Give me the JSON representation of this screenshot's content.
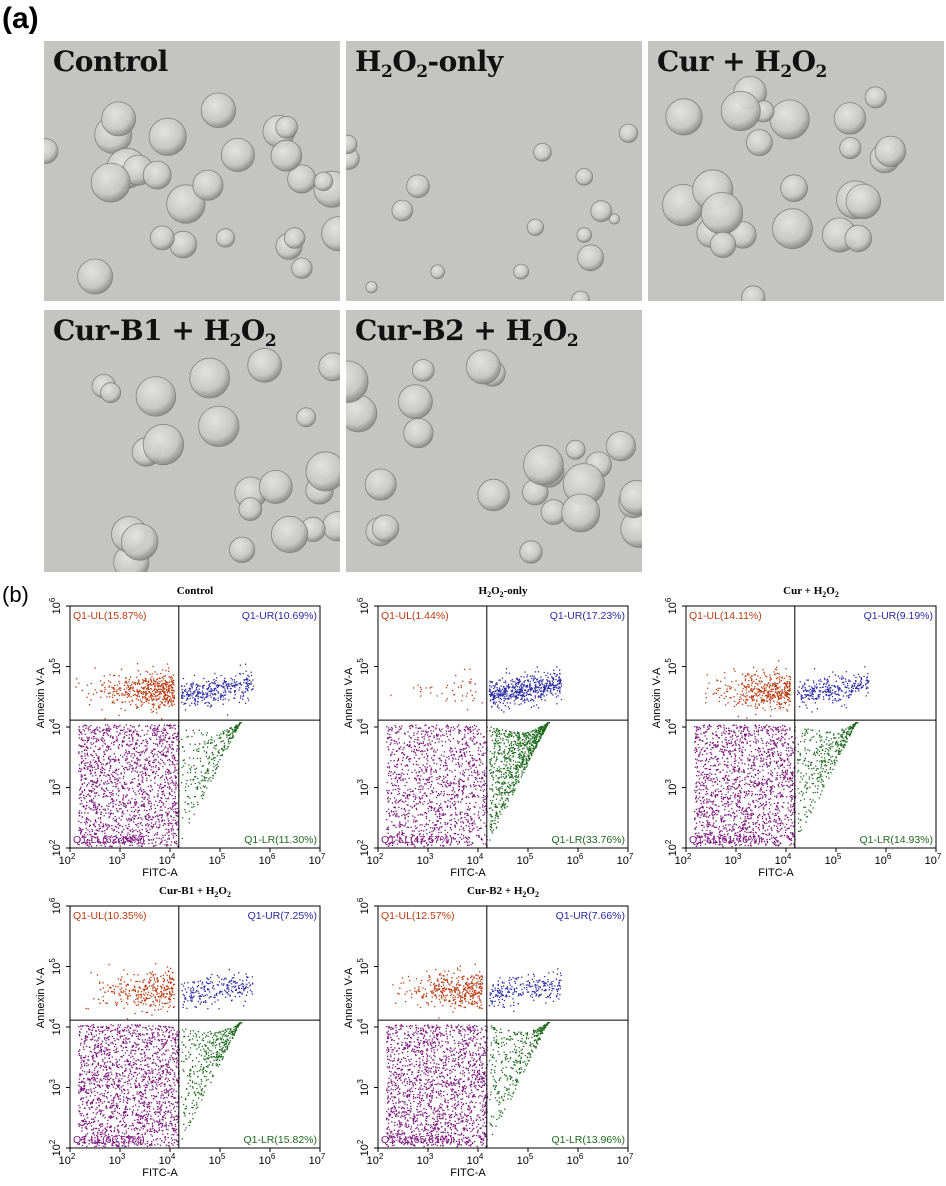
{
  "panel_a": {
    "letter": "(a)",
    "images": [
      {
        "label_parts": [
          "Control"
        ]
      },
      {
        "label_parts": [
          "H",
          "2",
          "O",
          "2",
          "-only"
        ]
      },
      {
        "label_parts": [
          "Cur + H",
          "2",
          "O",
          "2"
        ]
      },
      {
        "label_parts": [
          "Cur-B1 + H",
          "2",
          "O",
          "2"
        ]
      },
      {
        "label_parts": [
          "Cur-B2 + H",
          "2",
          "O",
          "2"
        ]
      }
    ]
  },
  "panel_b": {
    "letter": "(b)",
    "xlabel": "FITC-A",
    "ylabel": "Annexin V-A"
  },
  "colors": {
    "UL": "#b83a10",
    "UR": "#2b2aa0",
    "LL": "#7a137a",
    "LR": "#1f6a1f",
    "image_bg": "#c3c3c3"
  },
  "chart_data": [
    {
      "type": "scatter",
      "title_parts": [
        "Control"
      ],
      "xlabel": "FITC-A",
      "ylabel": "Annexin V-A",
      "x_log": true,
      "y_log": true,
      "xlim": [
        100,
        10000000
      ],
      "ylim": [
        100,
        1000000
      ],
      "x_ticks": [
        {
          "b": "10",
          "e": "2"
        },
        {
          "b": "10",
          "e": "3"
        },
        {
          "b": "10",
          "e": "4"
        },
        {
          "b": "10",
          "e": "5"
        },
        {
          "b": "10",
          "e": "6"
        },
        {
          "b": "10",
          "e": "7"
        }
      ],
      "y_ticks": [
        {
          "b": "10",
          "e": "2"
        },
        {
          "b": "10",
          "e": "3"
        },
        {
          "b": "10",
          "e": "4"
        },
        {
          "b": "10",
          "e": "5"
        },
        {
          "b": "10",
          "e": "6"
        }
      ],
      "gate_x": 15000,
      "gate_y": 13000,
      "quadrants": {
        "UL": "Q1-UL(15.87%)",
        "UR": "Q1-UR(10.69%)",
        "LL": "Q1-LL(62.14%)",
        "LR": "Q1-LR(11.30%)"
      },
      "percent": {
        "UL": 15.87,
        "UR": 10.69,
        "LL": 62.14,
        "LR": 11.3
      }
    },
    {
      "type": "scatter",
      "title_parts": [
        "H",
        "2",
        "O",
        "2",
        "-only"
      ],
      "xlabel": "FITC-A",
      "ylabel": "Annexin V-A",
      "x_log": true,
      "y_log": true,
      "xlim": [
        100,
        10000000
      ],
      "ylim": [
        100,
        1000000
      ],
      "x_ticks": [
        {
          "b": "10",
          "e": "2"
        },
        {
          "b": "10",
          "e": "3"
        },
        {
          "b": "10",
          "e": "4"
        },
        {
          "b": "10",
          "e": "5"
        },
        {
          "b": "10",
          "e": "6"
        },
        {
          "b": "10",
          "e": "7"
        }
      ],
      "y_ticks": [
        {
          "b": "10",
          "e": "2"
        },
        {
          "b": "10",
          "e": "3"
        },
        {
          "b": "10",
          "e": "4"
        },
        {
          "b": "10",
          "e": "5"
        },
        {
          "b": "10",
          "e": "6"
        }
      ],
      "gate_x": 15000,
      "gate_y": 13000,
      "quadrants": {
        "UL": "Q1-UL(1.44%)",
        "UR": "Q1-UR(17.23%)",
        "LL": "Q1-LL(47.57%)",
        "LR": "Q1-LR(33.76%)"
      },
      "percent": {
        "UL": 1.44,
        "UR": 17.23,
        "LL": 47.57,
        "LR": 33.76
      }
    },
    {
      "type": "scatter",
      "title_parts": [
        "Cur + H",
        "2",
        "O",
        "2"
      ],
      "xlabel": "FITC-A",
      "ylabel": "Annexin V-A",
      "x_log": true,
      "y_log": true,
      "xlim": [
        100,
        10000000
      ],
      "ylim": [
        100,
        1000000
      ],
      "x_ticks": [
        {
          "b": "10",
          "e": "2"
        },
        {
          "b": "10",
          "e": "3"
        },
        {
          "b": "10",
          "e": "4"
        },
        {
          "b": "10",
          "e": "5"
        },
        {
          "b": "10",
          "e": "6"
        },
        {
          "b": "10",
          "e": "7"
        }
      ],
      "y_ticks": [
        {
          "b": "10",
          "e": "2"
        },
        {
          "b": "10",
          "e": "3"
        },
        {
          "b": "10",
          "e": "4"
        },
        {
          "b": "10",
          "e": "5"
        },
        {
          "b": "10",
          "e": "6"
        }
      ],
      "gate_x": 15000,
      "gate_y": 13000,
      "quadrants": {
        "UL": "Q1-UL(14.11%)",
        "UR": "Q1-UR(9.19%)",
        "LL": "Q1-LL(61.76%)",
        "LR": "Q1-LR(14.93%)"
      },
      "percent": {
        "UL": 14.11,
        "UR": 9.19,
        "LL": 61.76,
        "LR": 14.93
      }
    },
    {
      "type": "scatter",
      "title_parts": [
        "Cur-B1 + H",
        "2",
        "O",
        "2"
      ],
      "xlabel": "FITC-A",
      "ylabel": "Annexin V-A",
      "x_log": true,
      "y_log": true,
      "xlim": [
        100,
        10000000
      ],
      "ylim": [
        100,
        1000000
      ],
      "x_ticks": [
        {
          "b": "10",
          "e": "2"
        },
        {
          "b": "10",
          "e": "3"
        },
        {
          "b": "10",
          "e": "4"
        },
        {
          "b": "10",
          "e": "5"
        },
        {
          "b": "10",
          "e": "6"
        },
        {
          "b": "10",
          "e": "7"
        }
      ],
      "y_ticks": [
        {
          "b": "10",
          "e": "2"
        },
        {
          "b": "10",
          "e": "3"
        },
        {
          "b": "10",
          "e": "4"
        },
        {
          "b": "10",
          "e": "5"
        },
        {
          "b": "10",
          "e": "6"
        }
      ],
      "gate_x": 15000,
      "gate_y": 13000,
      "quadrants": {
        "UL": "Q1-UL(10.35%)",
        "UR": "Q1-UR(7.25%)",
        "LL": "Q1-LL(66.57%)",
        "LR": "Q1-LR(15.82%)"
      },
      "percent": {
        "UL": 10.35,
        "UR": 7.25,
        "LL": 66.57,
        "LR": 15.82
      }
    },
    {
      "type": "scatter",
      "title_parts": [
        "Cur-B2 + H",
        "2",
        "O",
        "2"
      ],
      "xlabel": "FITC-A",
      "ylabel": "Annexin V-A",
      "x_log": true,
      "y_log": true,
      "xlim": [
        100,
        10000000
      ],
      "ylim": [
        100,
        1000000
      ],
      "x_ticks": [
        {
          "b": "10",
          "e": "2"
        },
        {
          "b": "10",
          "e": "3"
        },
        {
          "b": "10",
          "e": "4"
        },
        {
          "b": "10",
          "e": "5"
        },
        {
          "b": "10",
          "e": "6"
        },
        {
          "b": "10",
          "e": "7"
        }
      ],
      "y_ticks": [
        {
          "b": "10",
          "e": "2"
        },
        {
          "b": "10",
          "e": "3"
        },
        {
          "b": "10",
          "e": "4"
        },
        {
          "b": "10",
          "e": "5"
        },
        {
          "b": "10",
          "e": "6"
        }
      ],
      "gate_x": 15000,
      "gate_y": 13000,
      "quadrants": {
        "UL": "Q1-UL(12.57%)",
        "UR": "Q1-UR(7.66%)",
        "LL": "Q1-LL(65.81%)",
        "LR": "Q1-LR(13.96%)"
      },
      "percent": {
        "UL": 12.57,
        "UR": 7.66,
        "LL": 65.81,
        "LR": 13.96
      }
    }
  ]
}
